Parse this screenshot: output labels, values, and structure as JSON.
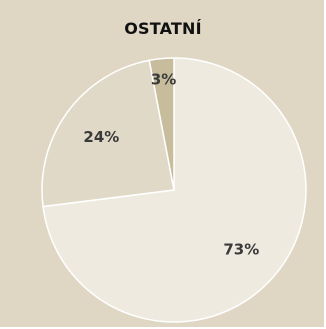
{
  "chart_data": {
    "type": "pie",
    "title": "OSTATNÍ",
    "categories": [
      "73%",
      "24%",
      "3%"
    ],
    "values": [
      73,
      24,
      3
    ],
    "labels": [
      "73%",
      "24%",
      "3%"
    ],
    "colors": [
      "#efeae0",
      "#e0d9c8",
      "#c7bd9d"
    ],
    "background": "#dfd7c4",
    "slice_border": "#ffffff"
  }
}
